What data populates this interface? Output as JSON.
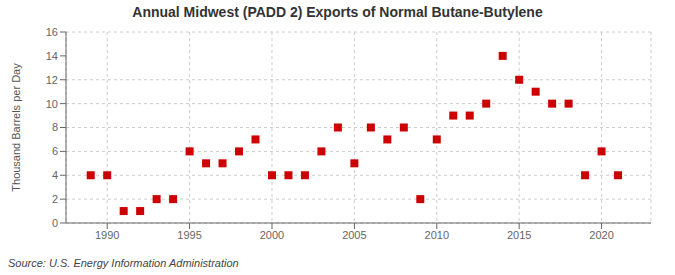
{
  "chart_data": {
    "type": "scatter",
    "title": "Annual Midwest (PADD 2) Exports of Normal Butane-Butylene",
    "ylabel": "Thousand Barrels per Day",
    "source": "Source: U.S. Energy Information Administration",
    "x": [
      1989,
      1990,
      1991,
      1992,
      1993,
      1994,
      1995,
      1996,
      1997,
      1998,
      1999,
      2000,
      2001,
      2002,
      2003,
      2004,
      2005,
      2006,
      2007,
      2008,
      2009,
      2010,
      2011,
      2012,
      2013,
      2014,
      2015,
      2016,
      2017,
      2018,
      2019,
      2020,
      2021
    ],
    "values": [
      4,
      4,
      1,
      1,
      2,
      2,
      6,
      5,
      5,
      6,
      7,
      4,
      4,
      4,
      6,
      8,
      5,
      8,
      7,
      8,
      2,
      7,
      9,
      9,
      10,
      14,
      12,
      11,
      10,
      10,
      4,
      6,
      4
    ],
    "color": "#cc0000",
    "marker": "square",
    "xlim": [
      1987.5,
      2023
    ],
    "xticks": [
      1990,
      1995,
      2000,
      2005,
      2010,
      2015,
      2020
    ],
    "ylim": [
      0,
      16
    ],
    "yticks": [
      0,
      2,
      4,
      6,
      8,
      10,
      12,
      14,
      16
    ],
    "grid": true
  }
}
